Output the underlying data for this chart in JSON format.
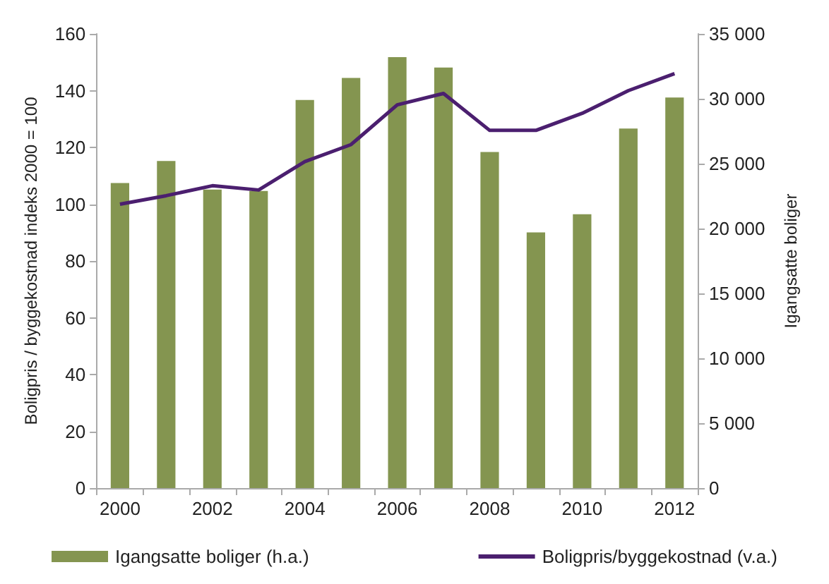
{
  "chart_data": {
    "type": "bar",
    "categories": [
      "2000",
      null,
      "2002",
      null,
      "2004",
      null,
      "2006",
      null,
      "2008",
      null,
      "2010",
      null,
      "2012"
    ],
    "ylabel": "Boligpris / byggekostnad indeks 2000 = 100",
    "y2label": "Igangsatte boliger",
    "ylim": [
      0,
      160
    ],
    "yticks": [
      0,
      20,
      40,
      60,
      80,
      100,
      120,
      140,
      160
    ],
    "y2lim": [
      0,
      35000
    ],
    "y2ticks": [
      {
        "value": 0,
        "label": "0"
      },
      {
        "value": 5000,
        "label": "5 000"
      },
      {
        "value": 10000,
        "label": "10 000"
      },
      {
        "value": 15000,
        "label": "15 000"
      },
      {
        "value": 20000,
        "label": "20 000"
      },
      {
        "value": 25000,
        "label": "25 000"
      },
      {
        "value": 30000,
        "label": "30 000"
      },
      {
        "value": 35000,
        "label": "35 000"
      }
    ],
    "series": [
      {
        "name": "Igangsatte boliger (h.a.)",
        "axis": "y2",
        "color": "#849550",
        "values": [
          23500,
          25200,
          23000,
          22900,
          29900,
          31600,
          33200,
          32400,
          25900,
          19700,
          21100,
          27700,
          30100
        ]
      },
      {
        "name": "Boligpris/byggekostnad (v.a.)",
        "type": "line",
        "color": "#4b1f6f",
        "values": [
          100,
          103,
          106.5,
          105,
          115,
          121,
          135,
          139,
          126,
          126,
          132,
          140,
          146
        ]
      }
    ],
    "legend": "bottom",
    "grid": false,
    "marker": "none"
  }
}
